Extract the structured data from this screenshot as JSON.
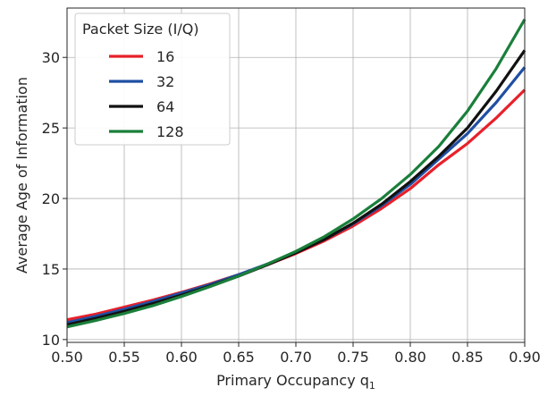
{
  "chart_data": {
    "type": "line",
    "xlabel": "Primary Occupancy q",
    "xlabel_sub": "1",
    "ylabel": "Average Age of Information",
    "xlim": [
      0.5,
      0.9
    ],
    "ylim": [
      9.8,
      33.5
    ],
    "xticks": [
      0.5,
      0.55,
      0.6,
      0.65,
      0.7,
      0.75,
      0.8,
      0.85,
      0.9
    ],
    "xtick_labels": [
      "0.50",
      "0.55",
      "0.60",
      "0.65",
      "0.70",
      "0.75",
      "0.80",
      "0.85",
      "0.90"
    ],
    "yticks": [
      10,
      15,
      20,
      25,
      30
    ],
    "ytick_labels": [
      "10",
      "15",
      "20",
      "25",
      "30"
    ],
    "grid": true,
    "legend": {
      "title": "Packet Size (I/Q)",
      "placement": "top-left"
    },
    "x": [
      0.5,
      0.525,
      0.55,
      0.575,
      0.6,
      0.625,
      0.65,
      0.675,
      0.7,
      0.725,
      0.75,
      0.775,
      0.8,
      0.825,
      0.85,
      0.875,
      0.9
    ],
    "series": [
      {
        "name": "16",
        "color": "#e8202a",
        "values": [
          11.4,
          11.8,
          12.3,
          12.8,
          13.35,
          13.95,
          14.6,
          15.3,
          16.1,
          17.0,
          18.05,
          19.3,
          20.7,
          22.4,
          23.9,
          25.7,
          27.7
        ]
      },
      {
        "name": "32",
        "color": "#1f4fa3",
        "values": [
          11.2,
          11.65,
          12.15,
          12.7,
          13.3,
          13.9,
          14.6,
          15.35,
          16.2,
          17.1,
          18.2,
          19.5,
          21.0,
          22.8,
          24.6,
          26.8,
          29.3
        ]
      },
      {
        "name": "64",
        "color": "#111111",
        "values": [
          11.05,
          11.5,
          12.0,
          12.55,
          13.15,
          13.8,
          14.5,
          15.3,
          16.15,
          17.1,
          18.25,
          19.6,
          21.2,
          23.0,
          25.0,
          27.6,
          30.5
        ]
      },
      {
        "name": "128",
        "color": "#1a7f3a",
        "values": [
          10.9,
          11.35,
          11.85,
          12.4,
          13.05,
          13.75,
          14.5,
          15.35,
          16.25,
          17.3,
          18.55,
          20.0,
          21.7,
          23.7,
          26.2,
          29.2,
          32.7
        ]
      }
    ]
  }
}
